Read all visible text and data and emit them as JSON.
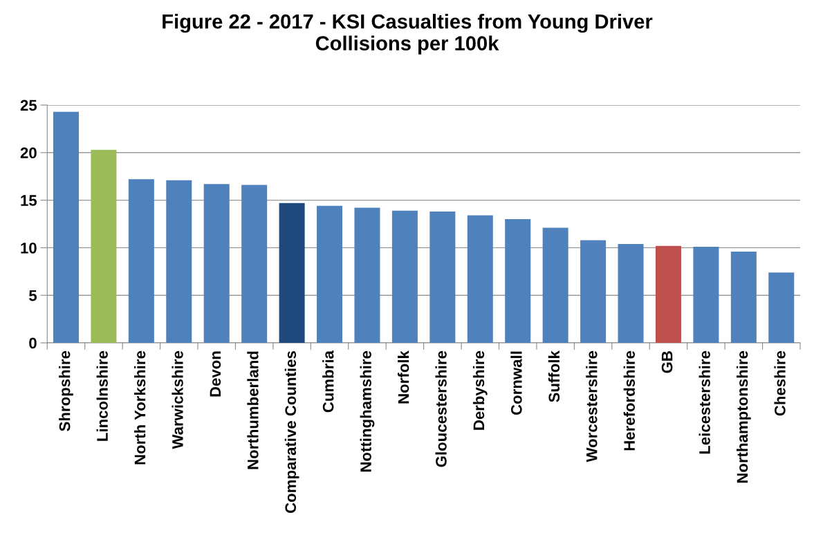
{
  "chart_data": {
    "type": "bar",
    "title": "Figure 22 - 2017 - KSI Casualties from Young Driver\nCollisions per 100k",
    "categories": [
      "Shropshire",
      "Lincolnshire",
      "North Yorkshire",
      "Warwickshire",
      "Devon",
      "Northumberland",
      "Comparative Counties",
      "Cumbria",
      "Nottinghamshire",
      "Norfolk",
      "Gloucestershire",
      "Derbyshire",
      "Cornwall",
      "Suffolk",
      "Worcestershire",
      "Herefordshire",
      "GB",
      "Leicestershire",
      "Northamptonshire",
      "Cheshire"
    ],
    "values": [
      24.3,
      20.3,
      17.2,
      17.1,
      16.7,
      16.6,
      14.7,
      14.4,
      14.2,
      13.9,
      13.8,
      13.4,
      13.0,
      12.1,
      10.8,
      10.4,
      10.2,
      10.1,
      9.6,
      7.4
    ],
    "colors": [
      "#4f81bd",
      "#9bbb59",
      "#4f81bd",
      "#4f81bd",
      "#4f81bd",
      "#4f81bd",
      "#1f497d",
      "#4f81bd",
      "#4f81bd",
      "#4f81bd",
      "#4f81bd",
      "#4f81bd",
      "#4f81bd",
      "#4f81bd",
      "#4f81bd",
      "#4f81bd",
      "#c0504d",
      "#4f81bd",
      "#4f81bd",
      "#4f81bd"
    ],
    "ylim": [
      0,
      25
    ],
    "yticks": [
      0,
      5,
      10,
      15,
      20,
      25
    ],
    "grid": "y",
    "legend": false
  }
}
